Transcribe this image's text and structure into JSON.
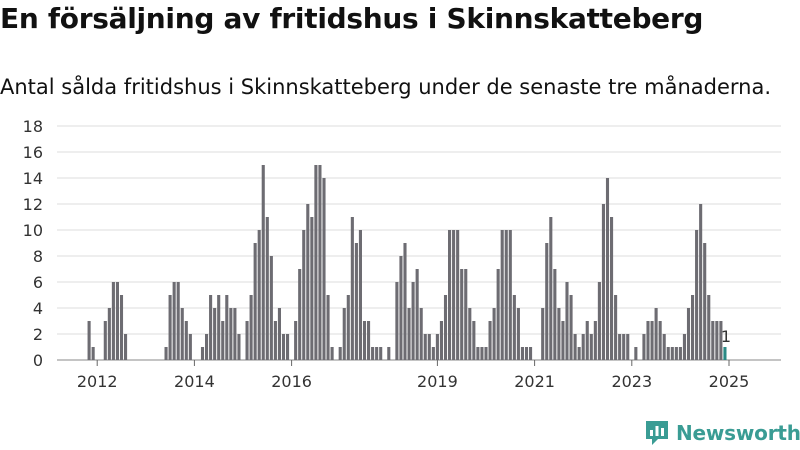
{
  "title": "En försäljning av fritidshus i Skinnskatteberg",
  "subtitle": "Antal sålda fritidshus i Skinnskatteberg under de senaste tre månaderna.",
  "brand": "Newsworthy",
  "colors": {
    "bar": "#6d6c72",
    "highlight": "#2a8a85",
    "grid": "#dcdcdc",
    "brand": "#3a9c94"
  },
  "chart_data": {
    "type": "bar",
    "ylim": [
      0,
      18
    ],
    "yticks": [
      0,
      2,
      4,
      6,
      8,
      10,
      12,
      14,
      16,
      18
    ],
    "xticks": [
      "2012",
      "2014",
      "2016",
      "2019",
      "2021",
      "2023",
      "2025"
    ],
    "xtick_index": [
      4,
      28,
      52,
      88,
      112,
      136,
      160
    ],
    "values": [
      0,
      0,
      3,
      1,
      0,
      0,
      3,
      4,
      6,
      6,
      5,
      2,
      0,
      0,
      0,
      0,
      0,
      0,
      0,
      0,
      0,
      1,
      5,
      6,
      6,
      4,
      3,
      2,
      0,
      0,
      1,
      2,
      5,
      4,
      5,
      3,
      5,
      4,
      4,
      2,
      0,
      3,
      5,
      9,
      10,
      15,
      11,
      8,
      3,
      4,
      2,
      2,
      0,
      3,
      7,
      10,
      12,
      11,
      15,
      15,
      14,
      5,
      1,
      0,
      1,
      4,
      5,
      11,
      9,
      10,
      3,
      3,
      1,
      1,
      1,
      0,
      1,
      0,
      6,
      8,
      9,
      4,
      6,
      7,
      4,
      2,
      2,
      1,
      2,
      3,
      5,
      10,
      10,
      10,
      7,
      7,
      4,
      3,
      1,
      1,
      1,
      3,
      4,
      7,
      10,
      10,
      10,
      5,
      4,
      1,
      1,
      1,
      0,
      0,
      4,
      9,
      11,
      7,
      4,
      3,
      6,
      5,
      2,
      1,
      2,
      3,
      2,
      3,
      6,
      12,
      14,
      11,
      5,
      2,
      2,
      2,
      0,
      1,
      0,
      2,
      3,
      3,
      4,
      3,
      2,
      1,
      1,
      1,
      1,
      2,
      4,
      5,
      10,
      12,
      9,
      5,
      3,
      3,
      3,
      1
    ],
    "last_label": "1"
  }
}
